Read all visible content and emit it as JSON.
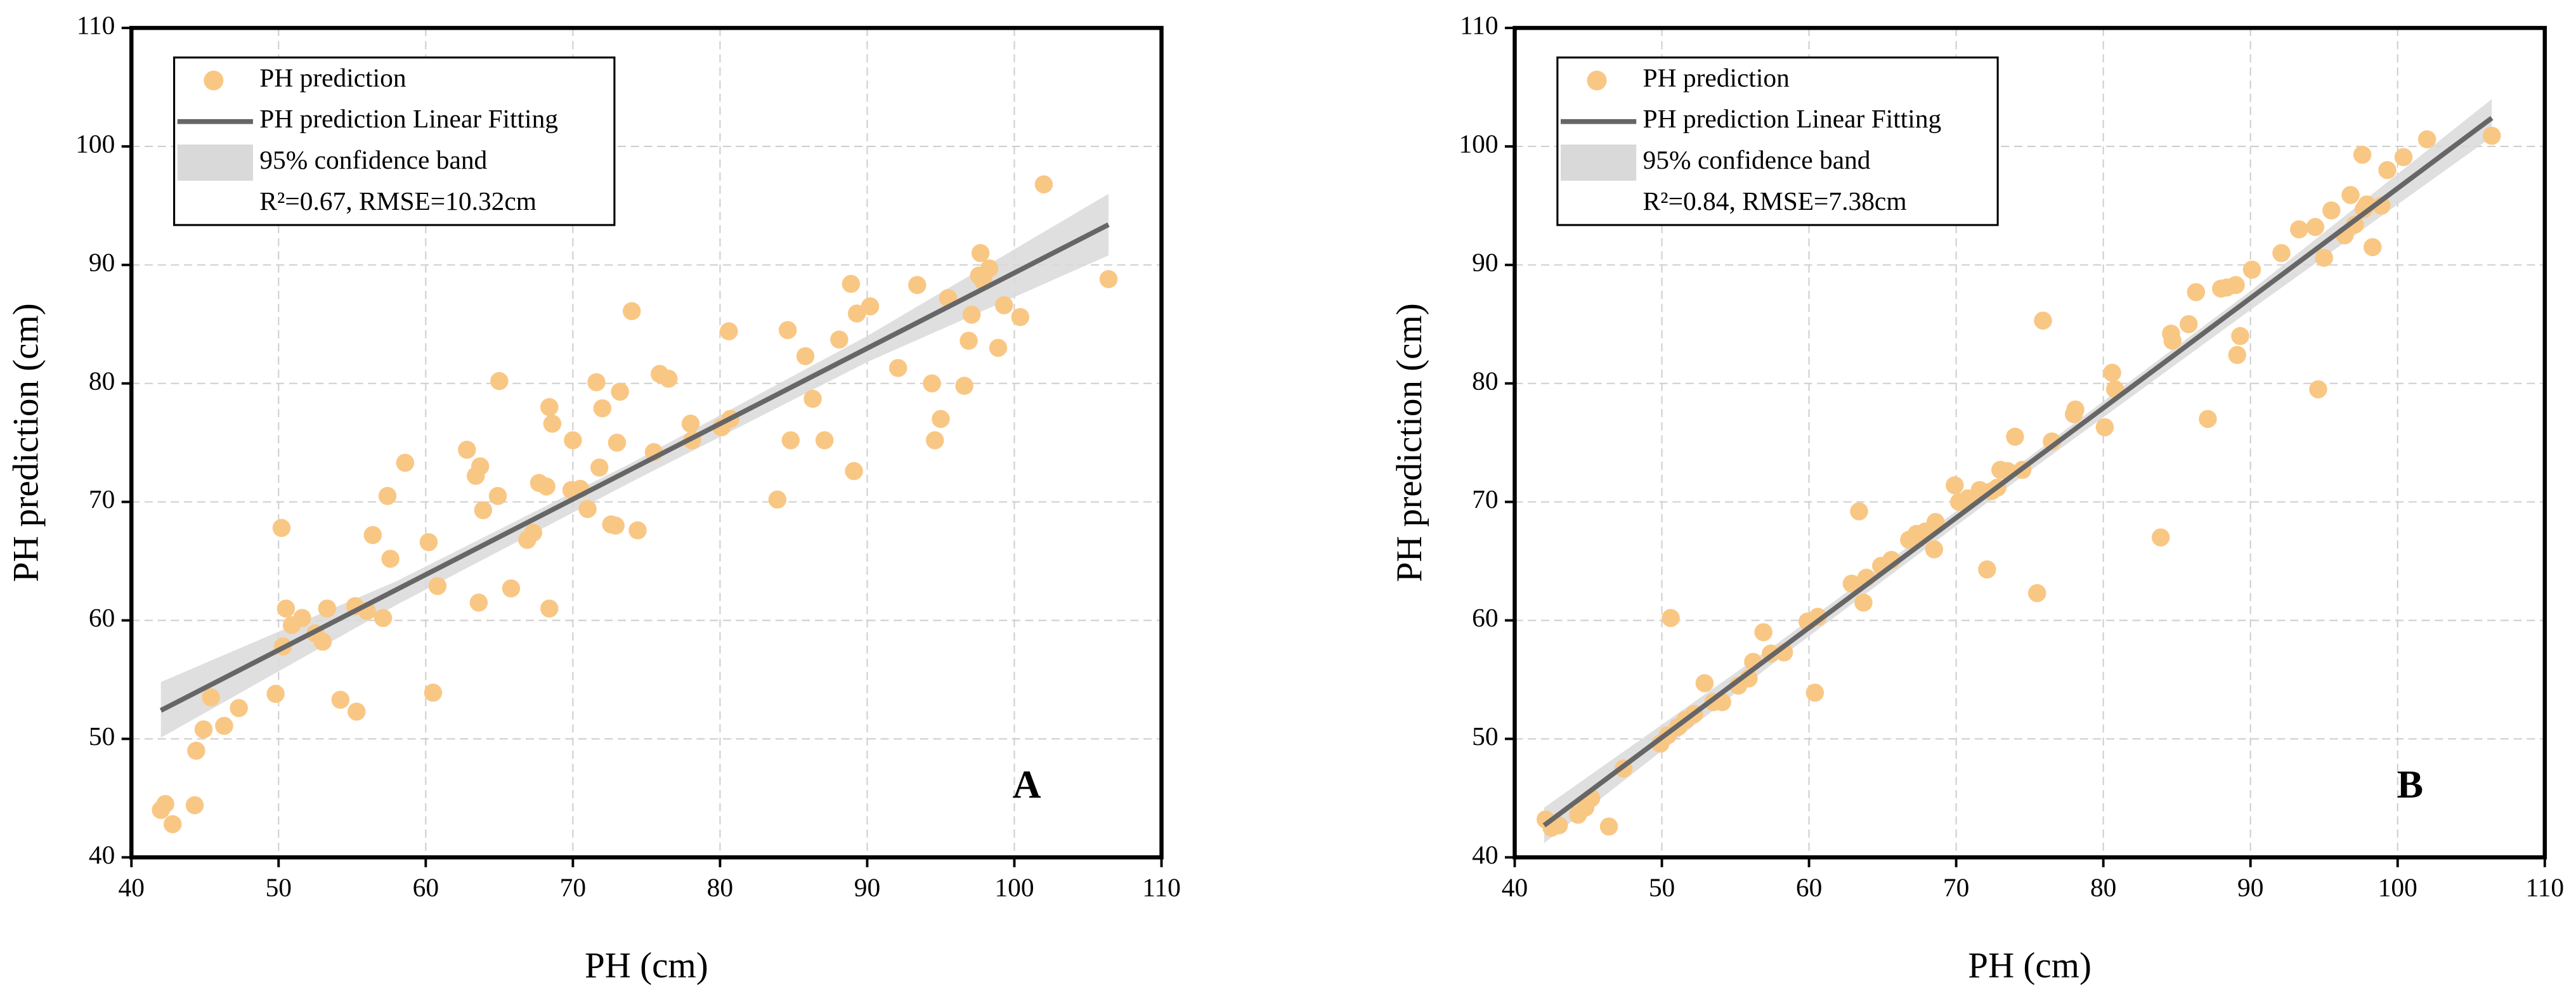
{
  "chart_data": [
    {
      "type": "scatter",
      "panel_label": "A",
      "xlabel": "PH (cm)",
      "ylabel": "PH prediction (cm)",
      "xlim": [
        40,
        110
      ],
      "ylim": [
        40,
        110
      ],
      "xticks": [
        40,
        50,
        60,
        70,
        80,
        90,
        100,
        110
      ],
      "yticks": [
        40,
        50,
        60,
        70,
        80,
        90,
        100,
        110
      ],
      "grid": true,
      "legend": "upper left",
      "annotation": "R²=0.67, RMSE=10.32cm",
      "series": [
        {
          "name": "PH prediction",
          "color": "#f9c784",
          "x": [
            42,
            42.3,
            42.8,
            44.3,
            44.4,
            44.9,
            45.4,
            46.3,
            47.3,
            49.8,
            50.2,
            50.3,
            50.5,
            50.9,
            51.6,
            52.5,
            53,
            53.3,
            54.2,
            55.2,
            55.3,
            56,
            56.4,
            57.1,
            57.4,
            57.6,
            58.6,
            60.2,
            60.5,
            60.8,
            62.8,
            63.4,
            63.6,
            63.7,
            63.9,
            64.9,
            65,
            65.8,
            66.9,
            67.3,
            67.7,
            68.2,
            68.4,
            68.4,
            68.6,
            69.9,
            70,
            70.5,
            71,
            71.6,
            71.8,
            72,
            72.6,
            72.9,
            73,
            73.2,
            74,
            74.4,
            75.5,
            75.9,
            76.5,
            78,
            78.1,
            80.1,
            80.6,
            80.7,
            83.9,
            84.6,
            84.8,
            85.8,
            86.3,
            87.1,
            88.1,
            88.9,
            89.1,
            89.3,
            90.2,
            92.1,
            93.4,
            94.4,
            94.6,
            95,
            95.5,
            96.6,
            96.9,
            97.1,
            97.6,
            97.7,
            97.9,
            98.3,
            98.9,
            99.3,
            100.4,
            102,
            106.4
          ],
          "values": [
            44,
            44.5,
            42.8,
            44.4,
            49,
            50.8,
            53.5,
            51.1,
            52.6,
            53.8,
            67.8,
            57.8,
            61,
            59.6,
            60.2,
            58.9,
            58.2,
            61,
            53.3,
            61.2,
            52.3,
            60.8,
            67.2,
            60.2,
            70.5,
            65.2,
            73.3,
            66.6,
            53.9,
            62.9,
            74.4,
            72.2,
            61.5,
            73,
            69.3,
            70.5,
            80.2,
            62.7,
            66.8,
            67.4,
            71.6,
            71.3,
            61,
            78,
            76.6,
            71,
            75.2,
            71.1,
            69.4,
            80.1,
            72.9,
            77.9,
            68.1,
            68,
            75,
            79.3,
            86.1,
            67.6,
            74.2,
            80.8,
            80.4,
            76.6,
            75.2,
            76.3,
            84.4,
            77,
            70.2,
            84.5,
            75.2,
            82.3,
            78.7,
            75.2,
            83.7,
            88.4,
            72.6,
            85.9,
            86.5,
            81.3,
            88.3,
            80,
            75.2,
            77,
            87.2,
            79.8,
            83.6,
            85.8,
            89.1,
            91,
            88.6,
            89.7,
            83,
            86.6,
            85.6,
            96.8,
            88.8
          ]
        },
        {
          "name": "PH prediction Linear Fitting",
          "color": "#666666",
          "x": [
            42,
            106.4
          ],
          "values": [
            52.4,
            93.4
          ]
        },
        {
          "name": "95% confidence band",
          "color": "#d9d9d9",
          "x": [
            42,
            58,
            74,
            90,
            106.4
          ],
          "upper": [
            54.8,
            63.3,
            73.3,
            84,
            96
          ],
          "lower": [
            50.1,
            61.3,
            71.7,
            81.8,
            90.8
          ]
        }
      ]
    },
    {
      "type": "scatter",
      "panel_label": "B",
      "xlabel": "PH (cm)",
      "ylabel": "PH prediction (cm)",
      "xlim": [
        40,
        110
      ],
      "ylim": [
        40,
        110
      ],
      "xticks": [
        40,
        50,
        60,
        70,
        80,
        90,
        100,
        110
      ],
      "yticks": [
        40,
        50,
        60,
        70,
        80,
        90,
        100,
        110
      ],
      "grid": true,
      "legend": "upper left",
      "annotation": "R²=0.84, RMSE=7.38cm",
      "series": [
        {
          "name": "PH prediction",
          "color": "#f9c784",
          "x": [
            42.1,
            42.5,
            43,
            44.3,
            44.8,
            45.2,
            46.4,
            47.4,
            49.9,
            50.4,
            50.6,
            51.1,
            51.6,
            52.2,
            52.9,
            53.5,
            54.1,
            55.2,
            55.9,
            56.2,
            56.9,
            57.4,
            58.3,
            59.9,
            60.4,
            60.6,
            62.9,
            63.4,
            63.7,
            63.9,
            64.9,
            65.6,
            66.8,
            67.3,
            67.9,
            68.5,
            68.6,
            69.9,
            70.2,
            70.8,
            71.6,
            72.1,
            72.4,
            72.8,
            73,
            73.5,
            74,
            74.5,
            75.5,
            75.9,
            76.5,
            78,
            78.1,
            80.1,
            80.6,
            80.8,
            83.9,
            84.6,
            84.7,
            85.8,
            86.3,
            87.1,
            88,
            88.4,
            89,
            89.1,
            89.3,
            90.1,
            92.1,
            93.3,
            94.4,
            94.6,
            95,
            95.5,
            96.4,
            96.8,
            97.1,
            97.6,
            97.7,
            97.9,
            98.3,
            98.9,
            99.3,
            100.4,
            102,
            106.4
          ],
          "values": [
            43.2,
            42.5,
            42.7,
            43.6,
            44.2,
            45,
            42.6,
            47.5,
            49.6,
            50.3,
            60.2,
            51,
            51.6,
            52.1,
            54.7,
            53.1,
            53.1,
            54.5,
            55.1,
            56.5,
            59,
            57.2,
            57.3,
            59.9,
            53.9,
            60.3,
            63.1,
            69.2,
            61.5,
            63.6,
            64.6,
            65.1,
            66.8,
            67.3,
            67.5,
            66,
            68.3,
            71.4,
            70,
            70.3,
            71,
            64.3,
            70.9,
            71.2,
            72.7,
            72.6,
            75.5,
            72.7,
            62.3,
            85.3,
            75.1,
            77.4,
            77.8,
            76.3,
            80.9,
            79.5,
            67,
            84.2,
            83.6,
            85,
            87.7,
            77,
            88,
            88.1,
            88.3,
            82.4,
            84,
            89.6,
            91,
            93,
            93.2,
            79.5,
            90.6,
            94.6,
            92.5,
            95.9,
            93.4,
            99.3,
            94.7,
            95.1,
            91.5,
            95,
            98,
            99.1,
            100.6,
            100.9
          ]
        },
        {
          "name": "PH prediction Linear Fitting",
          "color": "#666666",
          "x": [
            42,
            106.4
          ],
          "values": [
            42.7,
            102.4
          ]
        },
        {
          "name": "95% confidence band",
          "color": "#d9d9d9",
          "x": [
            42,
            58,
            74,
            90,
            106.4
          ],
          "upper": [
            44.2,
            58.2,
            72.9,
            87.8,
            104
          ],
          "lower": [
            41.2,
            56.8,
            71.7,
            86.2,
            100.8
          ]
        }
      ]
    }
  ]
}
